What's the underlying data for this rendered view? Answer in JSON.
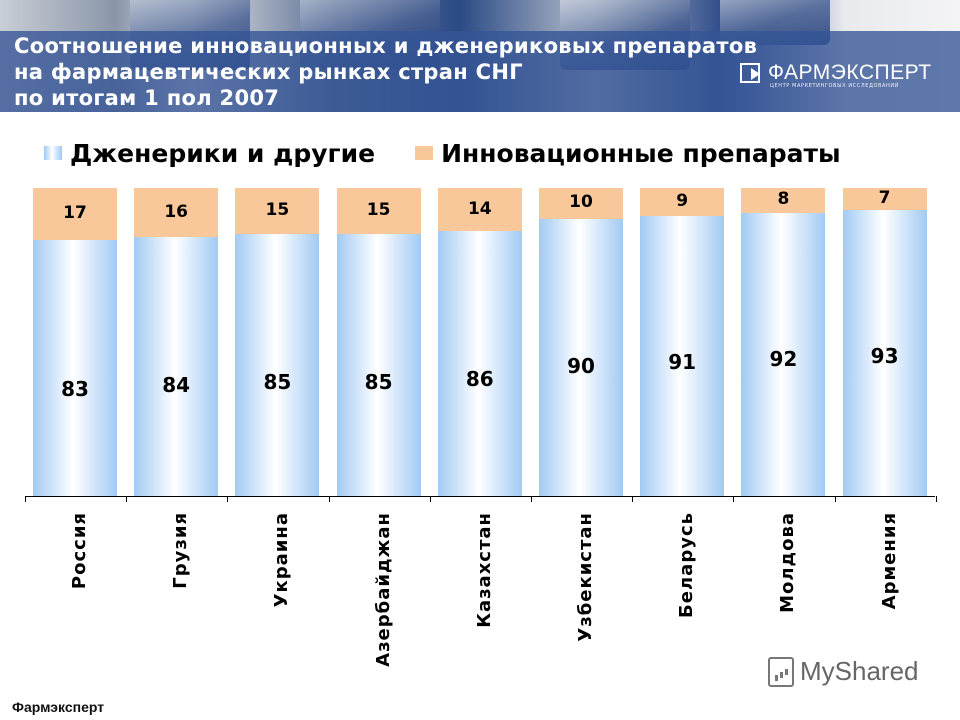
{
  "header": {
    "title_lines": [
      "Соотношение инновационных и дженериковых препаратов",
      "на фармацевтических рынках стран СНГ",
      "по итогам 1 пол 2007"
    ],
    "logo_name": "ФАРМЭКСПЕРТ",
    "logo_subtitle": "ЦЕНТР МАРКЕТИНГОВЫХ ИССЛЕДОВАНИЙ"
  },
  "legend": {
    "generics": "Дженерики и другие",
    "innovative": "Инновационные препараты"
  },
  "colors": {
    "generics": "#a2caf3",
    "innovative": "#f9c89a",
    "title_strip": "#3454a0"
  },
  "footer": {
    "source": "Фармэксперт",
    "watermark": "MyShared"
  },
  "chart_data": {
    "type": "bar",
    "stacked": true,
    "percent": true,
    "title": "Соотношение инновационных и дженериковых препаратов на фармацевтических рынках стран СНГ по итогам 1 пол 2007",
    "xlabel": "",
    "ylabel": "",
    "ylim": [
      0,
      100
    ],
    "grid": false,
    "legend_position": "top",
    "categories": [
      "Россия",
      "Грузия",
      "Украина",
      "Азербайджан",
      "Казахстан",
      "Узбекистан",
      "Беларусь",
      "Молдова",
      "Армения"
    ],
    "series": [
      {
        "name": "Дженерики и другие",
        "values": [
          83,
          84,
          85,
          85,
          86,
          90,
          91,
          92,
          93
        ]
      },
      {
        "name": "Инновационные препараты",
        "values": [
          17,
          16,
          15,
          15,
          14,
          10,
          9,
          8,
          7
        ]
      }
    ]
  }
}
